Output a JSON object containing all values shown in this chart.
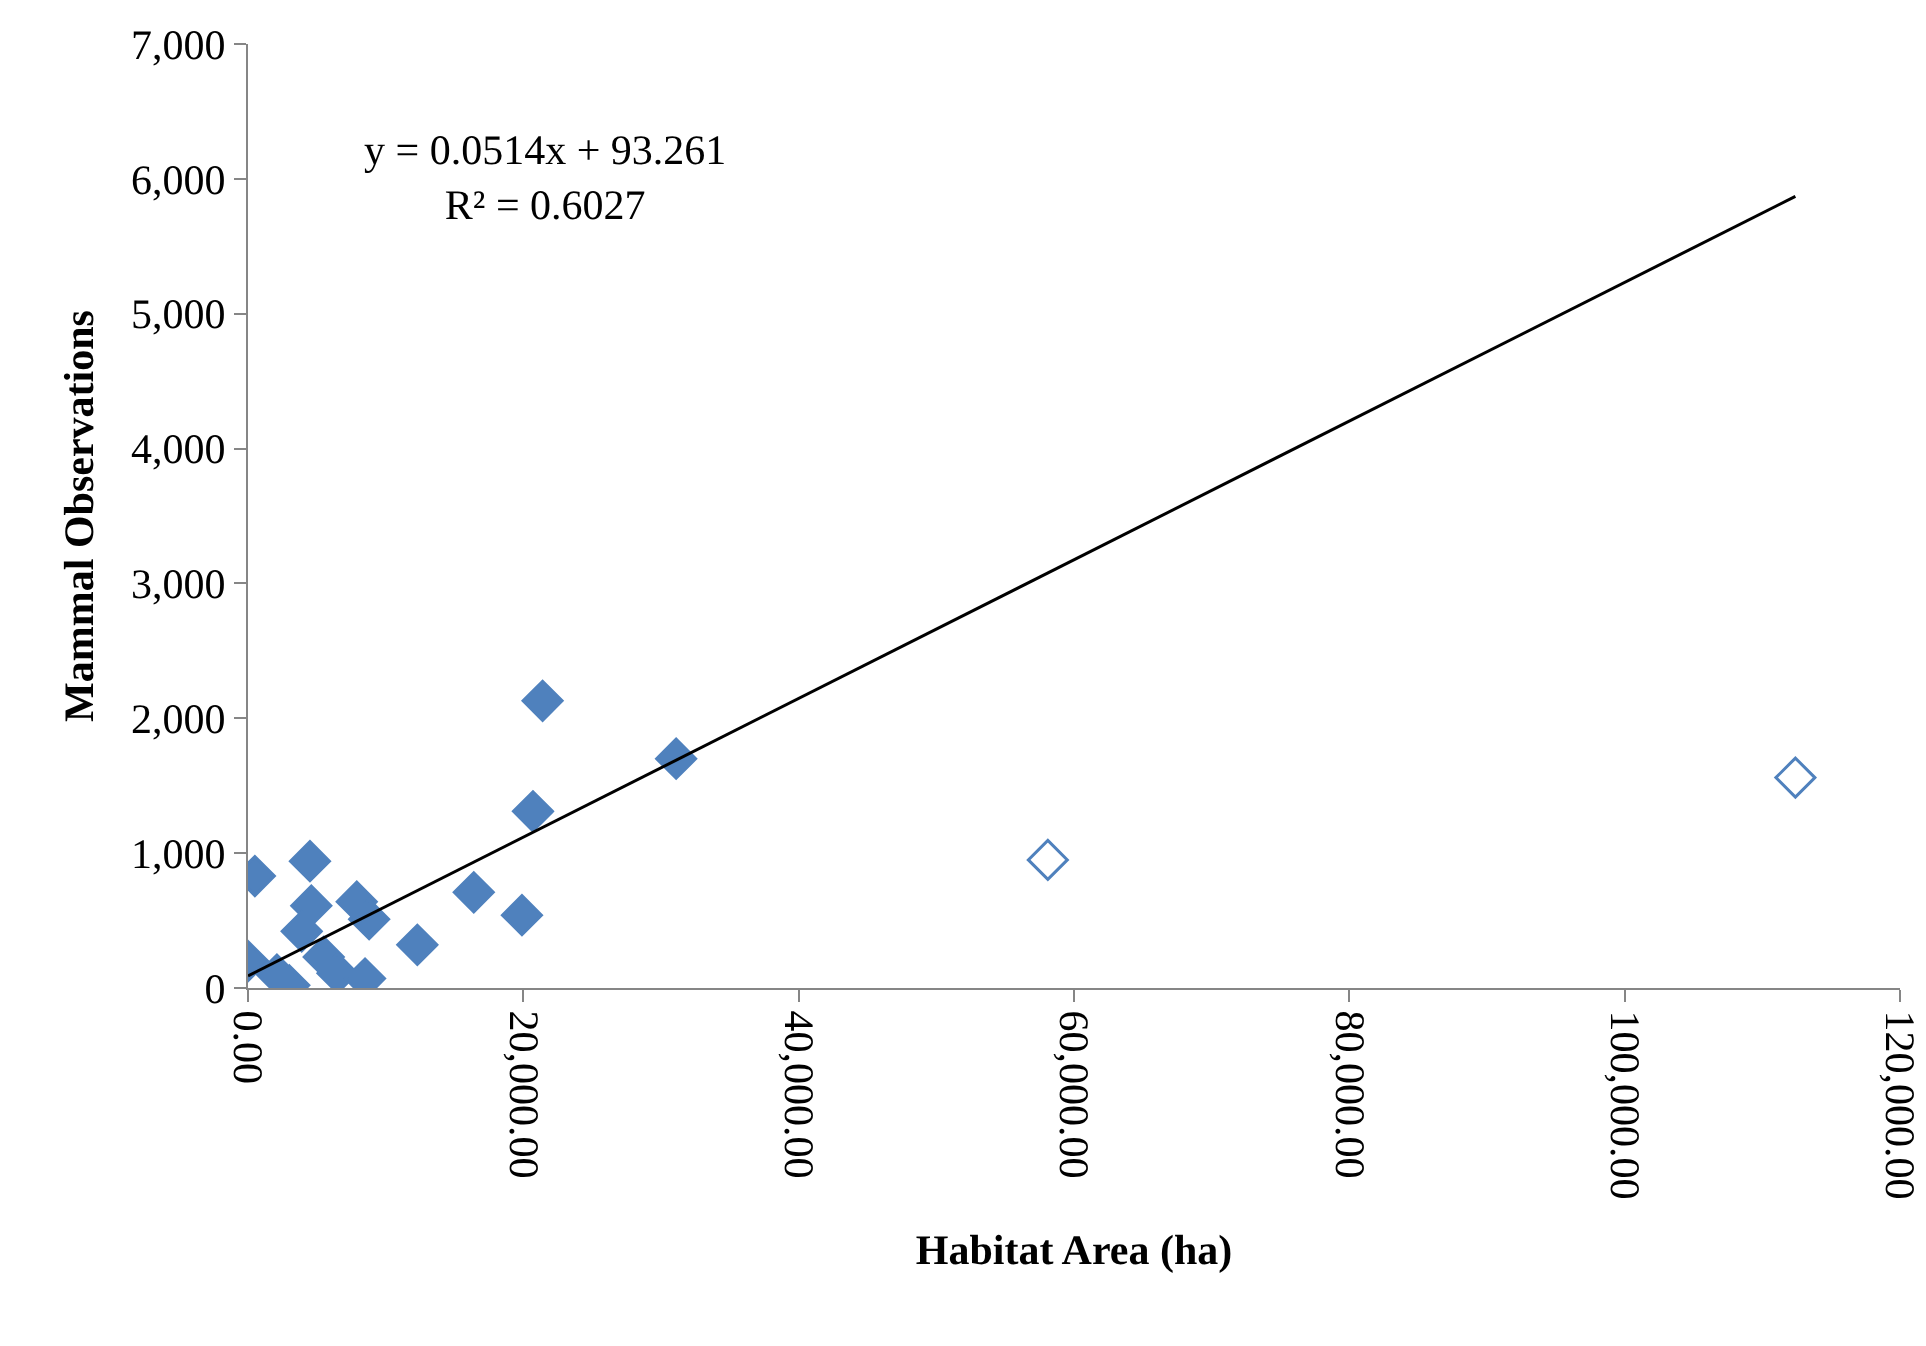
{
  "chart_data": {
    "type": "scatter",
    "xlabel": "Habitat Area (ha)",
    "ylabel": "Mammal Observations",
    "marker": "diamond",
    "grid": false,
    "xlim": [
      0,
      120000
    ],
    "xticks": [
      {
        "value": 0,
        "label": "0.00"
      },
      {
        "value": 20000,
        "label": "20,000.00"
      },
      {
        "value": 40000,
        "label": "40,000.00"
      },
      {
        "value": 60000,
        "label": "60,000.00"
      },
      {
        "value": 80000,
        "label": "80,000.00"
      },
      {
        "value": 100000,
        "label": "100,000.00"
      },
      {
        "value": 120000,
        "label": "120,000.00"
      }
    ],
    "ylim": [
      0,
      7000
    ],
    "yticks": [
      0,
      {
        "value": 1000,
        "label": "1,000"
      },
      {
        "value": 2000,
        "label": "2,000"
      },
      {
        "value": 3000,
        "label": "3,000"
      },
      {
        "value": 4000,
        "label": "4,000"
      },
      {
        "value": 5000,
        "label": "5,000"
      },
      {
        "value": 6000,
        "label": "6,000"
      },
      {
        "value": 7000,
        "label": "7,000"
      }
    ],
    "annotations": [
      "y = 0.0514x + 93.261\nR² = 0.6027"
    ],
    "series": [
      {
        "color": "#4f81bd",
        "x": [
          21400,
          31100,
          20700,
          4500,
          500,
          4600,
          7900,
          8800,
          16400,
          19900,
          3900,
          12300,
          5500,
          6500,
          8500,
          0,
          3000,
          2100
        ],
        "values": [
          2130,
          1700,
          1310,
          940,
          830,
          610,
          640,
          510,
          710,
          540,
          420,
          320,
          230,
          110,
          70,
          200,
          20,
          100
        ]
      },
      {
        "color": "#4f81bd",
        "x": [
          58100,
          112400
        ],
        "values": [
          950,
          1560
        ]
      },
      {
        "type": "line",
        "marker": "none",
        "color": "#000000",
        "x": [
          0,
          112400
        ],
        "values": [
          90,
          5870
        ]
      }
    ]
  }
}
